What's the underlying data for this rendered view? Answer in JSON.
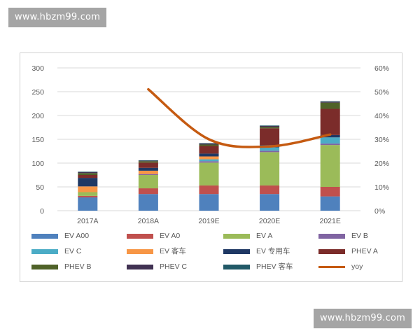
{
  "watermark_top": "www.hbzm99.com",
  "watermark_bottom": "www.hbzm99.com",
  "chart_data": {
    "type": "bar",
    "stacked": true,
    "categories": [
      "2017A",
      "2018A",
      "2019E",
      "2020E",
      "2021E"
    ],
    "ylim": [
      0,
      300
    ],
    "y_ticks": [
      "0",
      "50",
      "100",
      "150",
      "200",
      "250",
      "300"
    ],
    "y2lim": [
      0,
      0.6
    ],
    "y2_ticks": [
      "0%",
      "10%",
      "20%",
      "30%",
      "40%",
      "50%",
      "60%"
    ],
    "grid": true,
    "legend_position": "bottom",
    "series": [
      {
        "name": "EV A00",
        "color": "#4f81bd",
        "values": [
          28,
          35,
          35,
          35,
          30
        ]
      },
      {
        "name": "EV A0",
        "color": "#c0504d",
        "values": [
          3,
          12,
          18,
          18,
          20
        ]
      },
      {
        "name": "EV A",
        "color": "#9bbb59",
        "values": [
          8,
          28,
          48,
          70,
          88
        ]
      },
      {
        "name": "EV B",
        "color": "#8064a2",
        "values": [
          0,
          2,
          3,
          3,
          3
        ]
      },
      {
        "name": "EV C",
        "color": "#4bacc6",
        "values": [
          0,
          0,
          4,
          7,
          13
        ]
      },
      {
        "name": "EV 客车",
        "color": "#f79646",
        "values": [
          12,
          7,
          6,
          0,
          0
        ]
      },
      {
        "name": "EV 专用车",
        "color": "#1f3864",
        "values": [
          18,
          6,
          6,
          5,
          5
        ]
      },
      {
        "name": "PHEV A",
        "color": "#7b2c2a",
        "values": [
          6,
          11,
          16,
          35,
          55
        ]
      },
      {
        "name": "PHEV B",
        "color": "#4f6228",
        "values": [
          4,
          3,
          3,
          3,
          13
        ]
      },
      {
        "name": "PHEV C",
        "color": "#403152",
        "values": [
          2,
          1,
          2,
          2,
          2
        ]
      },
      {
        "name": "PHEV 客车",
        "color": "#215967",
        "values": [
          1,
          1,
          1,
          1,
          1
        ]
      }
    ],
    "line_series": {
      "name": "yoy",
      "color": "#c55a11",
      "x": [
        "2018A",
        "2019E",
        "2020E",
        "2021E"
      ],
      "values": [
        0.51,
        0.3,
        0.27,
        0.32
      ]
    }
  }
}
